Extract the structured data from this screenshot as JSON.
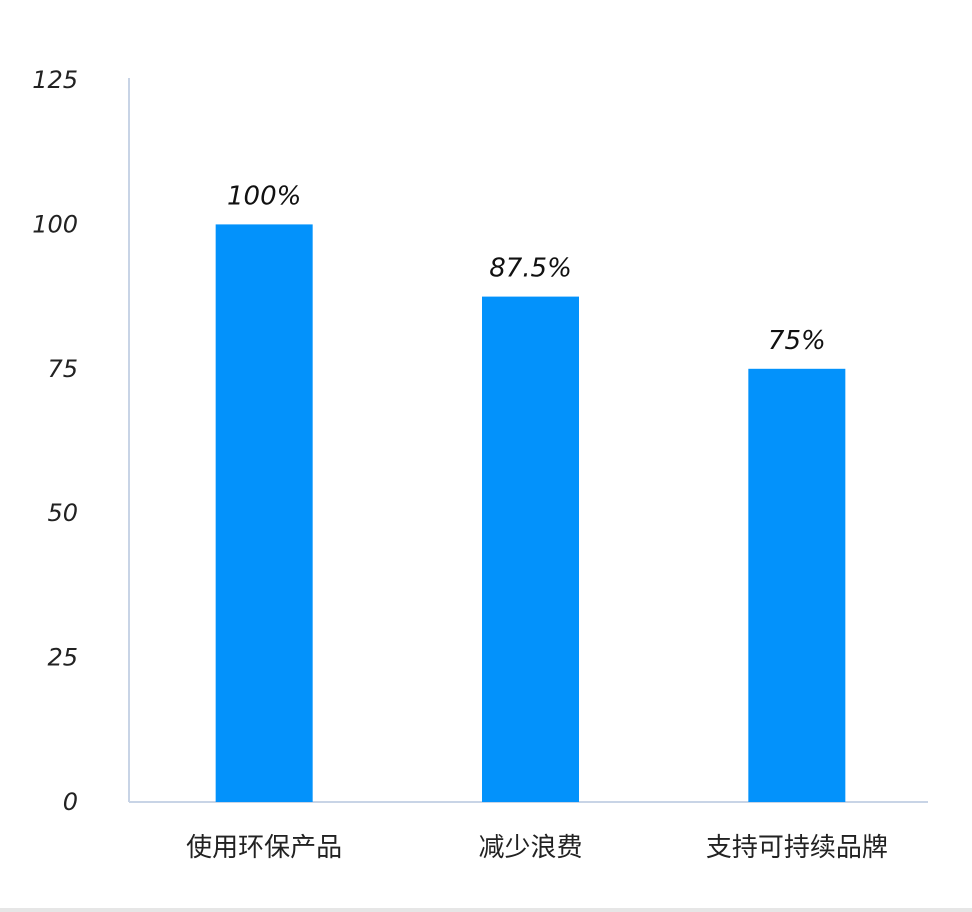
{
  "chart_data": {
    "type": "bar",
    "categories": [
      "使用环保产品",
      "减少浪费",
      "支持可持续品牌"
    ],
    "values": [
      100,
      87.5,
      75
    ],
    "data_labels": [
      "100%",
      "87.5%",
      "75%"
    ],
    "title": "",
    "xlabel": "",
    "ylabel": "",
    "ylim": [
      0,
      125
    ],
    "yticks": [
      "0",
      "25",
      "50",
      "75",
      "100",
      "125"
    ],
    "grid": false,
    "bar_color": "#0392FB",
    "axis_color": "#C8D4E6"
  }
}
